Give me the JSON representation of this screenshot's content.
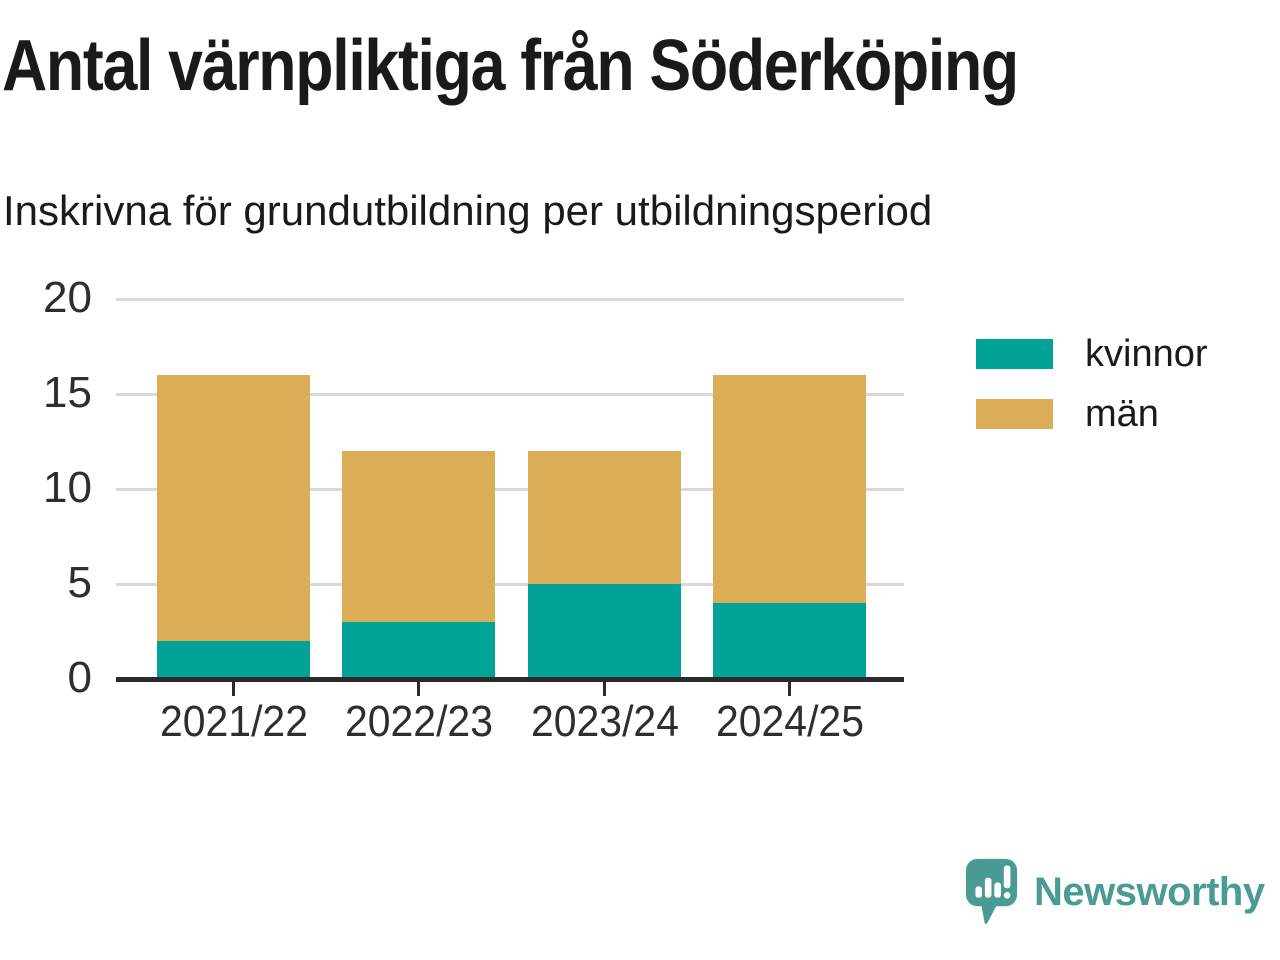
{
  "header": {
    "title": "Antal värnpliktiga från Söderköping",
    "subtitle": "Inskrivna för grundutbildning per utbildningsperiod"
  },
  "chart_data": {
    "type": "bar",
    "stacked": true,
    "title": "Antal värnpliktiga från Söderköping",
    "subtitle": "Inskrivna för grundutbildning per utbildningsperiod",
    "categories": [
      "2021/22",
      "2022/23",
      "2023/24",
      "2024/25"
    ],
    "series": [
      {
        "name": "kvinnor",
        "color": "#01A396",
        "values": [
          2,
          3,
          5,
          4
        ]
      },
      {
        "name": "män",
        "color": "#DCAD57",
        "values": [
          14,
          9,
          7,
          12
        ]
      }
    ],
    "stack_totals": [
      16,
      12,
      12,
      16
    ],
    "xlabel": "",
    "ylabel": "",
    "ylim": [
      0,
      20
    ],
    "yticks": [
      0,
      5,
      10,
      15,
      20
    ],
    "grid": "horizontal-only",
    "legend_position": "right",
    "grid_color": "#d9d9d9",
    "axis_color": "#2b2b2b",
    "tick_label_color": "#2e2e2e"
  },
  "branding": {
    "logo_text": "Newsworthy",
    "logo_color": "#4A9B94",
    "logo_icon": "speech-bubble-bar-chart-exclamation-icon"
  }
}
